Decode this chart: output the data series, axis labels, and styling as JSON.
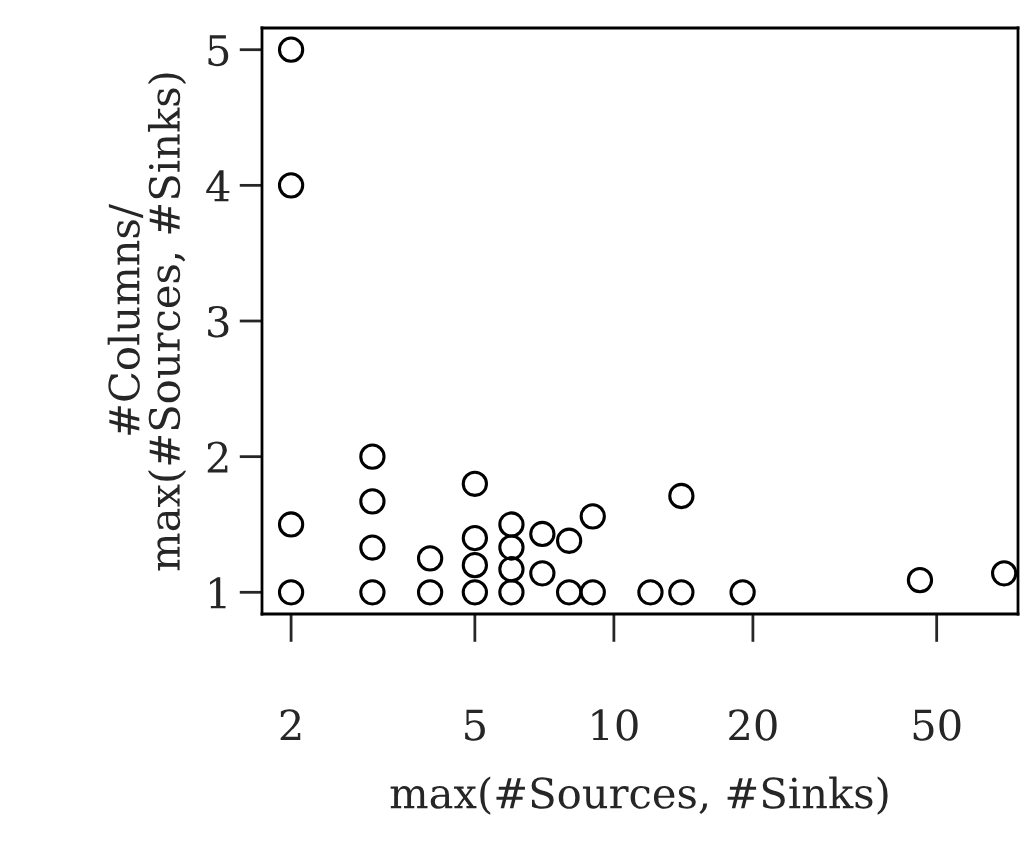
{
  "chart_data": {
    "type": "scatter",
    "xlabel": "max(#Sources, #Sinks)",
    "ylabel": "#Columns/\nmax(#Sources, #Sinks)",
    "x": [
      2,
      2,
      2,
      2,
      3,
      3,
      3,
      3,
      4,
      4,
      5,
      5,
      5,
      5,
      6,
      6,
      6,
      6,
      7,
      7,
      8,
      8,
      9,
      9,
      12,
      14,
      14,
      19,
      46,
      70
    ],
    "values": [
      5,
      4,
      1.5,
      1,
      2,
      1.67,
      1.33,
      1,
      1.25,
      1,
      1.8,
      1.4,
      1.2,
      1,
      1.5,
      1.33,
      1.17,
      1,
      1.43,
      1.14,
      1.38,
      1,
      1.56,
      1,
      1,
      1.71,
      1,
      1,
      1.09,
      1.14
    ],
    "color": "#000000",
    "marker": "circle",
    "log": "x",
    "xlim": [
      1.73,
      75
    ],
    "ylim": [
      0.84,
      5.16
    ],
    "xticks": [
      2,
      5,
      10,
      20,
      50
    ],
    "yticks": [
      1,
      2,
      3,
      4,
      5
    ],
    "grid": false
  }
}
